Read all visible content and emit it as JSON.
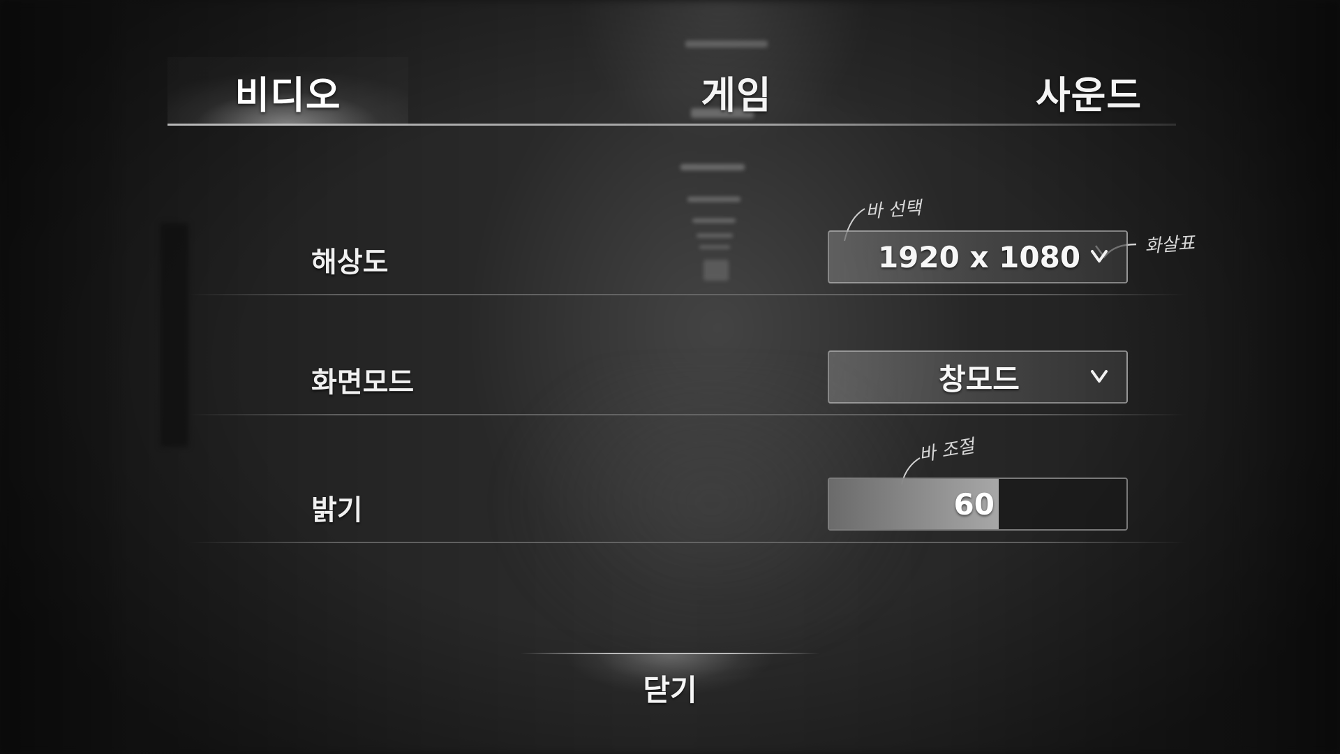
{
  "tabs": [
    {
      "label": "비디오",
      "active": true
    },
    {
      "label": "게임",
      "active": false
    },
    {
      "label": "사운드",
      "active": false
    }
  ],
  "settings": {
    "resolution": {
      "label": "해상도",
      "value": "1920 x 1080",
      "icon": "chevron-down-icon"
    },
    "screen_mode": {
      "label": "화면모드",
      "value": "창모드",
      "icon": "chevron-down-icon"
    },
    "brightness": {
      "label": "밝기",
      "value": "60",
      "level": 0.57
    }
  },
  "annotations": {
    "select_note": "바 선택",
    "arrow_note": "화살표",
    "adjust_note": "바 조절"
  },
  "close_label": "닫기",
  "colors": {
    "background": "#1c1c1c",
    "text": "#f2f2f2",
    "accent_fill": "#afafaf"
  }
}
